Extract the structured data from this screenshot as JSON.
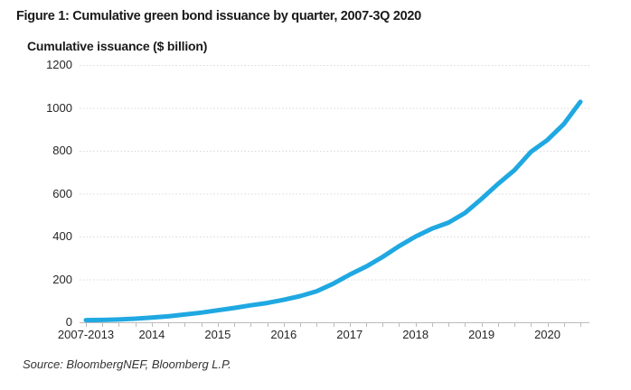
{
  "chart_data": {
    "type": "line",
    "title": "Figure 1: Cumulative green bond issuance by quarter, 2007-3Q 2020",
    "ylabel": "Cumulative issuance ($ billion)",
    "source": "Source: BloombergNEF, Bloomberg L.P.",
    "legend": "none",
    "grid": "horizontal-dotted",
    "ylim": [
      0,
      1200
    ],
    "yticks": [
      0,
      200,
      400,
      600,
      800,
      1000,
      1200
    ],
    "x_unit": "year (quarterly points; first tick labelled 2007-2013 aggregates pre-2014 issuance)",
    "xticks": [
      {
        "label": "2007-2013",
        "t": 2013
      },
      {
        "label": "2014",
        "t": 2014
      },
      {
        "label": "2015",
        "t": 2015
      },
      {
        "label": "2016",
        "t": 2016
      },
      {
        "label": "2017",
        "t": 2017
      },
      {
        "label": "2018",
        "t": 2018
      },
      {
        "label": "2019",
        "t": 2019
      },
      {
        "label": "2020",
        "t": 2020
      }
    ],
    "series": [
      {
        "name": "Cumulative green bond issuance ($ billion)",
        "color": "#1FA8E1",
        "x": [
          2013,
          2013.25,
          2013.5,
          2013.75,
          2014,
          2014.25,
          2014.5,
          2014.75,
          2015,
          2015.25,
          2015.5,
          2015.75,
          2016,
          2016.25,
          2016.5,
          2016.75,
          2017,
          2017.25,
          2017.5,
          2017.75,
          2018,
          2018.25,
          2018.5,
          2018.75,
          2019,
          2019.25,
          2019.5,
          2019.75,
          2020,
          2020.25,
          2020.5
        ],
        "values": [
          10,
          11,
          13,
          17,
          22,
          28,
          36,
          45,
          56,
          67,
          79,
          90,
          105,
          122,
          145,
          180,
          222,
          260,
          305,
          355,
          400,
          437,
          465,
          510,
          575,
          645,
          710,
          795,
          850,
          925,
          1028
        ]
      }
    ],
    "colors": {
      "line": "#1FA8E1",
      "gridline": "#D8D8D8",
      "axis": "#BBBBBB",
      "text": "#262626",
      "title_text": "#1A1A1A",
      "background": "#FFFFFF"
    }
  }
}
